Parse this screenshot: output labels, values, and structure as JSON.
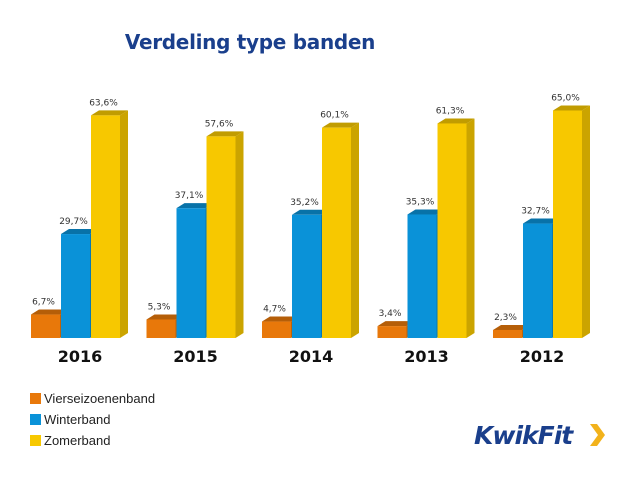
{
  "chart_data": {
    "type": "bar",
    "title": "Verdeling type banden",
    "xlabel": "",
    "ylabel": "",
    "ylim": [
      0,
      70
    ],
    "grid": false,
    "legend_position": "bottom-left",
    "categories": [
      "2016",
      "2015",
      "2014",
      "2013",
      "2012"
    ],
    "series": [
      {
        "name": "Vierseizoenenband",
        "color": "#e8780a",
        "values": [
          6.7,
          5.3,
          4.7,
          3.4,
          2.3
        ],
        "labels": [
          "6,7%",
          "5,3%",
          "4,7%",
          "3,4%",
          "2,3%"
        ]
      },
      {
        "name": "Winterband",
        "color": "#0a92d8",
        "values": [
          29.7,
          37.1,
          35.2,
          35.3,
          32.7
        ],
        "labels": [
          "29,7%",
          "37,1%",
          "35,2%",
          "35,3%",
          "32,7%"
        ]
      },
      {
        "name": "Zomerband",
        "color": "#f7c800",
        "values": [
          63.6,
          57.6,
          60.1,
          61.3,
          65.0
        ],
        "labels": [
          "63,6%",
          "57,6%",
          "60,1%",
          "61,3%",
          "65,0%"
        ]
      }
    ]
  },
  "logo": {
    "text": "KwikFit",
    "brand_color": "#1a3f8c",
    "accent_color": "#f2b21b"
  }
}
